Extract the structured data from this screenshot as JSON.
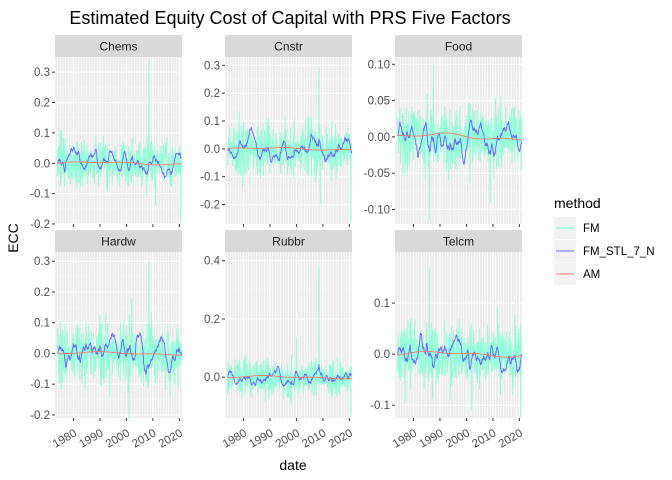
{
  "chart_data": {
    "type": "line",
    "title": "Estimated Equity Cost of Capital with PRS Five Factors",
    "xlabel": "date",
    "ylabel": "ECC",
    "x_ticks": [
      "1980",
      "1990",
      "2000",
      "2010",
      "2020"
    ],
    "x_range": [
      1973,
      2021
    ],
    "grid": true,
    "legend": {
      "title": "method",
      "position": "right",
      "entries": [
        {
          "name": "FM",
          "color": "#7FFFD4"
        },
        {
          "name": "FM_STL_7_N",
          "color": "#6666FF"
        },
        {
          "name": "AM",
          "color": "#F8766D"
        }
      ]
    },
    "facets": [
      {
        "name": "Chems",
        "ylim": [
          -0.2,
          0.35
        ],
        "y_ticks": [
          "0.3",
          "0.2",
          "0.1",
          "0.0",
          "-0.1",
          "-0.2"
        ],
        "y_tick_values": [
          0.3,
          0.2,
          0.1,
          0.0,
          -0.1,
          -0.2
        ],
        "fm_amp": 0.045,
        "fm_spikes": [
          [
            2008.5,
            0.34
          ],
          [
            2020.5,
            -0.19
          ],
          [
            2011,
            -0.14
          ]
        ],
        "stl_amp": 0.012
      },
      {
        "name": "Cnstr",
        "ylim": [
          -0.27,
          0.33
        ],
        "y_ticks": [
          "0.3",
          "0.2",
          "0.1",
          "0.0",
          "-0.1",
          "-0.2"
        ],
        "y_tick_values": [
          0.3,
          0.2,
          0.1,
          0.0,
          -0.1,
          -0.2
        ],
        "fm_amp": 0.06,
        "fm_spikes": [
          [
            2008.5,
            0.29
          ],
          [
            2020.5,
            -0.26
          ],
          [
            2009,
            -0.2
          ]
        ],
        "stl_amp": 0.015
      },
      {
        "name": "Food",
        "ylim": [
          -0.12,
          0.11
        ],
        "y_ticks": [
          "0.10",
          "0.05",
          "0.00",
          "-0.05",
          "-0.10"
        ],
        "y_tick_values": [
          0.1,
          0.05,
          0.0,
          -0.05,
          -0.1
        ],
        "fm_amp": 0.028,
        "fm_spikes": [
          [
            1987.5,
            0.1
          ],
          [
            1986,
            -0.115
          ],
          [
            2009,
            -0.09
          ]
        ],
        "stl_amp": 0.008
      },
      {
        "name": "Hardw",
        "ylim": [
          -0.21,
          0.33
        ],
        "y_ticks": [
          "0.3",
          "0.2",
          "0.1",
          "0.0",
          "-0.1",
          "-0.2"
        ],
        "y_tick_values": [
          0.3,
          0.2,
          0.1,
          0.0,
          -0.1,
          -0.2
        ],
        "fm_amp": 0.06,
        "fm_spikes": [
          [
            2008.5,
            0.3
          ],
          [
            2001,
            -0.21
          ],
          [
            2002,
            0.18
          ]
        ],
        "stl_amp": 0.018
      },
      {
        "name": "Rubbr",
        "ylim": [
          -0.14,
          0.43
        ],
        "y_ticks": [
          "0.4",
          "0.2",
          "0.0"
        ],
        "y_tick_values": [
          0.4,
          0.2,
          0.0
        ],
        "fm_amp": 0.04,
        "fm_spikes": [
          [
            2008.5,
            0.38
          ],
          [
            2020.5,
            -0.13
          ],
          [
            2000,
            0.14
          ]
        ],
        "stl_amp": 0.01
      },
      {
        "name": "Telcm",
        "ylim": [
          -0.125,
          0.2
        ],
        "y_ticks": [
          "0.1",
          "0.0",
          "-0.1"
        ],
        "y_tick_values": [
          0.1,
          0.0,
          -0.1
        ],
        "fm_amp": 0.04,
        "fm_spikes": [
          [
            1986,
            0.17
          ],
          [
            2002,
            -0.11
          ],
          [
            2020.5,
            -0.12
          ]
        ],
        "stl_amp": 0.012
      }
    ]
  }
}
